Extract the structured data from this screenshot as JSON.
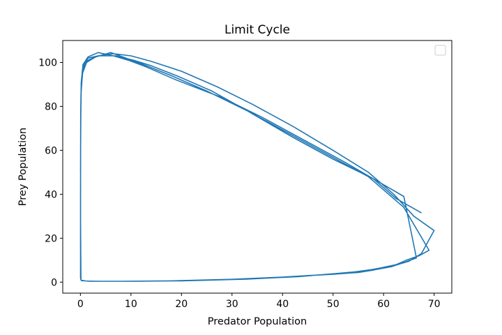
{
  "chart_data": {
    "type": "line",
    "title": "Limit Cycle",
    "xlabel": "Predator Population",
    "ylabel": "Prey Population",
    "xlim": [
      -3.5,
      73.5
    ],
    "ylim": [
      -5,
      110
    ],
    "xticks": [
      0,
      10,
      20,
      30,
      40,
      50,
      60,
      70
    ],
    "yticks": [
      0,
      20,
      40,
      60,
      80,
      100
    ],
    "grid": false,
    "legend": "top-right",
    "legend_entries": [],
    "series": [
      {
        "color": "#1f77b4",
        "x": [
          67.5,
          62.5,
          58.0,
          50.0,
          42.0,
          33.0,
          26.0,
          19.0,
          14.0,
          10.5,
          7.0,
          3.5,
          1.5,
          0.5,
          0.15,
          0.05,
          0.02,
          0.02,
          0.1,
          1.0,
          4.0,
          10.0,
          20.0,
          30.0,
          40.0,
          50.0,
          55.0,
          58.0,
          61.5,
          63.5,
          66.5,
          64.0,
          58.0,
          52.0,
          44.0,
          36.0,
          28.0,
          19.0,
          13.0,
          9.5,
          6.5,
          3.5,
          1.5,
          0.5,
          0.15,
          0.05,
          0.02,
          0.1,
          1.0,
          4.0,
          11.0,
          22.0,
          33.0,
          43.0,
          51.0,
          56.0,
          59.5,
          62.5,
          64.5,
          67.0,
          69.0,
          64.0,
          57.0,
          49.0,
          41.0,
          33.0,
          25.0,
          18.0,
          12.5,
          9.0,
          6.0,
          3.0,
          1.2,
          0.4,
          0.1,
          0.03,
          0.02,
          0.2,
          2.0,
          8.0,
          18.0,
          30.0,
          40.0,
          48.0,
          54.0,
          58.5,
          62.0,
          65.0,
          67.5,
          70.0,
          66.0,
          62.0,
          57.0,
          50.0,
          42.0,
          34.0,
          27.0,
          20.0,
          14.0,
          10.0,
          6.5,
          3.5,
          1.5,
          0.5,
          0.15,
          0.05,
          0.02
        ],
        "y": [
          31.5,
          38.0,
          47.0,
          56.0,
          66.0,
          78.0,
          87.0,
          94.0,
          98.5,
          101.0,
          103.0,
          103.0,
          102.0,
          98.0,
          90.0,
          75.0,
          40.0,
          2.0,
          1.0,
          0.5,
          0.4,
          0.4,
          0.6,
          1.2,
          2.3,
          3.6,
          4.4,
          5.5,
          7.0,
          8.5,
          11.0,
          39.0,
          47.0,
          55.0,
          65.0,
          75.0,
          84.0,
          92.0,
          98.0,
          101.0,
          103.0,
          104.5,
          102.5,
          99.0,
          91.0,
          76.0,
          30.0,
          1.0,
          0.5,
          0.4,
          0.4,
          0.7,
          1.4,
          2.5,
          4.0,
          5.0,
          6.5,
          8.0,
          10.0,
          12.0,
          14.5,
          34.0,
          48.0,
          58.0,
          68.0,
          78.0,
          87.0,
          94.0,
          99.0,
          102.0,
          104.5,
          102.5,
          100.0,
          95.0,
          85.0,
          60.0,
          2.0,
          0.7,
          0.4,
          0.4,
          0.6,
          1.3,
          2.3,
          3.4,
          4.6,
          6.0,
          7.5,
          9.5,
          13.0,
          23.5,
          30.0,
          40.0,
          50.0,
          60.0,
          71.0,
          81.0,
          89.0,
          96.0,
          100.5,
          103.0,
          104.0,
          103.0,
          101.0,
          97.0,
          88.0,
          72.0,
          50.0
        ]
      }
    ]
  }
}
